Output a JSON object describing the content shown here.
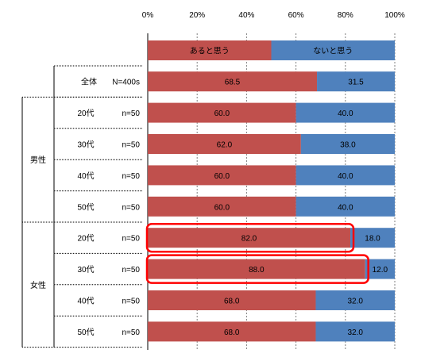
{
  "chart_data": {
    "type": "bar",
    "stacked": true,
    "orientation": "horizontal",
    "x_ticks": [
      "0%",
      "20%",
      "40%",
      "60%",
      "80%",
      "100%"
    ],
    "xlim": [
      0,
      100
    ],
    "legend": [
      "あると思う",
      "ないと思う"
    ],
    "colors": {
      "yes": "#c0504d",
      "no": "#4f81bd",
      "highlight": "#ff0000"
    },
    "groups": [
      {
        "label": "",
        "rows": [
          {
            "age": "全体",
            "n": "N=400s",
            "yes": 68.5,
            "no": 31.5,
            "yes_label": "68.5",
            "no_label": "31.5",
            "highlight": false
          }
        ]
      },
      {
        "label": "男性",
        "rows": [
          {
            "age": "20代",
            "n": "n=50",
            "yes": 60.0,
            "no": 40.0,
            "yes_label": "60.0",
            "no_label": "40.0",
            "highlight": false
          },
          {
            "age": "30代",
            "n": "n=50",
            "yes": 62.0,
            "no": 38.0,
            "yes_label": "62.0",
            "no_label": "38.0",
            "highlight": false
          },
          {
            "age": "40代",
            "n": "n=50",
            "yes": 60.0,
            "no": 40.0,
            "yes_label": "60.0",
            "no_label": "40.0",
            "highlight": false
          },
          {
            "age": "50代",
            "n": "n=50",
            "yes": 60.0,
            "no": 40.0,
            "yes_label": "60.0",
            "no_label": "40.0",
            "highlight": false
          }
        ]
      },
      {
        "label": "女性",
        "rows": [
          {
            "age": "20代",
            "n": "n=50",
            "yes": 82.0,
            "no": 18.0,
            "yes_label": "82.0",
            "no_label": "18.0",
            "highlight": true
          },
          {
            "age": "30代",
            "n": "n=50",
            "yes": 88.0,
            "no": 12.0,
            "yes_label": "88.0",
            "no_label": "12.0",
            "highlight": true
          },
          {
            "age": "40代",
            "n": "n=50",
            "yes": 68.0,
            "no": 32.0,
            "yes_label": "68.0",
            "no_label": "32.0",
            "highlight": false
          },
          {
            "age": "50代",
            "n": "n=50",
            "yes": 68.0,
            "no": 32.0,
            "yes_label": "68.0",
            "no_label": "32.0",
            "highlight": false
          }
        ]
      }
    ]
  }
}
